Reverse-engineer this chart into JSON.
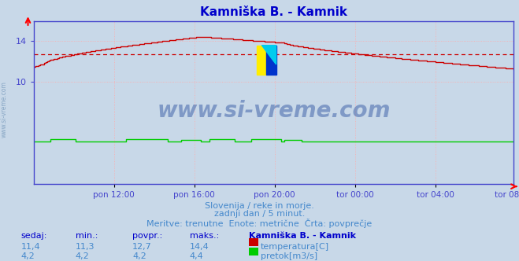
{
  "title": "Kamniška B. - Kamnik",
  "title_color": "#0000cc",
  "bg_color": "#c8d8e8",
  "plot_bg_color": "#c8d8e8",
  "grid_color": "#ffaaaa",
  "grid_linestyle": ":",
  "x_tick_labels": [
    "pon 12:00",
    "pon 16:00",
    "pon 20:00",
    "tor 00:00",
    "tor 04:00",
    "tor 08:00"
  ],
  "x_tick_positions": [
    48,
    96,
    144,
    192,
    240,
    287
  ],
  "total_points": 288,
  "ylim_min": 9.0,
  "ylim_max": 15.5,
  "yticks": [
    10,
    14
  ],
  "temp_color": "#cc0000",
  "flow_color": "#00cc00",
  "avg_line_color": "#cc0000",
  "avg_temp": 12.7,
  "watermark": "www.si-vreme.com",
  "watermark_color": "#4466aa",
  "subtitle1": "Slovenija / reke in morje.",
  "subtitle2": "zadnji dan / 5 minut.",
  "subtitle3": "Meritve: trenutne  Enote: metrične  Črta: povprečje",
  "subtitle_color": "#4488cc",
  "table_header": [
    "sedaj:",
    "min.:",
    "povpr.:",
    "maks.:",
    "Kamniška B. - Kamnik"
  ],
  "table_temp": [
    "11,4",
    "11,3",
    "12,7",
    "14,4"
  ],
  "table_flow": [
    "4,2",
    "4,2",
    "4,2",
    "4,4"
  ],
  "table_color": "#4488cc",
  "table_header_color": "#0000cc",
  "left_label": "www.si-vreme.com",
  "left_label_color": "#7799bb",
  "spine_color": "#4444cc",
  "tick_color": "#4444cc"
}
